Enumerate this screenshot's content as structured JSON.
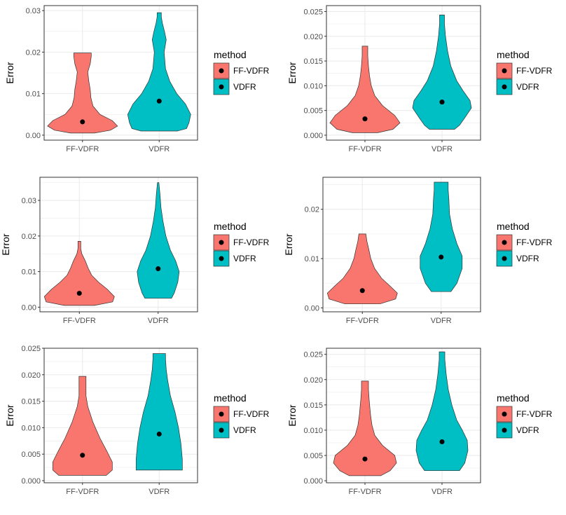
{
  "colors": {
    "FF-VDFR": "#F8766D",
    "VDFR": "#00BFC4",
    "panel_border": "#333333",
    "grid": "#EBEBEB",
    "tick": "#333333",
    "point": "#000000"
  },
  "chart_data": [
    {
      "type": "violin",
      "categories": [
        "FF-VDFR",
        "VDFR"
      ],
      "ylabel": "Error",
      "xlabel": "",
      "ylim": [
        -0.0012,
        0.0312
      ],
      "yticks": [
        0.0,
        0.01,
        0.02,
        0.03
      ],
      "ytick_labels": [
        "0.00",
        "0.01",
        "0.02",
        "0.03"
      ],
      "grid": true,
      "legend": {
        "title": "method",
        "entries": [
          "FF-VDFR",
          "VDFR"
        ],
        "placement": "right"
      },
      "series": [
        {
          "name": "FF-VDFR",
          "mean": 0.0032,
          "density": [
            [
              0.0005,
              0.34
            ],
            [
              0.0012,
              0.8
            ],
            [
              0.0022,
              1.0
            ],
            [
              0.0035,
              0.85
            ],
            [
              0.005,
              0.5
            ],
            [
              0.007,
              0.3
            ],
            [
              0.009,
              0.24
            ],
            [
              0.011,
              0.22
            ],
            [
              0.013,
              0.18
            ],
            [
              0.0152,
              0.15
            ],
            [
              0.0172,
              0.22
            ],
            [
              0.019,
              0.25
            ],
            [
              0.0198,
              0.25
            ]
          ]
        },
        {
          "name": "VDFR",
          "mean": 0.0082,
          "density": [
            [
              0.001,
              0.52
            ],
            [
              0.0016,
              0.78
            ],
            [
              0.003,
              0.85
            ],
            [
              0.005,
              0.9
            ],
            [
              0.0075,
              0.75
            ],
            [
              0.01,
              0.5
            ],
            [
              0.013,
              0.3
            ],
            [
              0.016,
              0.18
            ],
            [
              0.02,
              0.14
            ],
            [
              0.023,
              0.2
            ],
            [
              0.025,
              0.15
            ],
            [
              0.027,
              0.09
            ],
            [
              0.0285,
              0.06
            ],
            [
              0.0295,
              0.06
            ]
          ]
        }
      ]
    },
    {
      "type": "violin",
      "categories": [
        "FF-VDFR",
        "VDFR"
      ],
      "ylabel": "Error",
      "xlabel": "",
      "ylim": [
        -0.001,
        0.0262
      ],
      "yticks": [
        0.0,
        0.005,
        0.01,
        0.015,
        0.02,
        0.025
      ],
      "ytick_labels": [
        "0.000",
        "0.005",
        "0.010",
        "0.015",
        "0.020",
        "0.025"
      ],
      "grid": true,
      "legend": {
        "title": "method",
        "entries": [
          "FF-VDFR",
          "VDFR"
        ],
        "placement": "right"
      },
      "series": [
        {
          "name": "FF-VDFR",
          "mean": 0.0033,
          "density": [
            [
              0.0005,
              0.36
            ],
            [
              0.0012,
              0.8
            ],
            [
              0.0025,
              1.0
            ],
            [
              0.004,
              0.85
            ],
            [
              0.006,
              0.5
            ],
            [
              0.008,
              0.28
            ],
            [
              0.01,
              0.18
            ],
            [
              0.012,
              0.13
            ],
            [
              0.014,
              0.1
            ],
            [
              0.016,
              0.08
            ],
            [
              0.0178,
              0.08
            ],
            [
              0.018,
              0.08
            ]
          ]
        },
        {
          "name": "VDFR",
          "mean": 0.0067,
          "density": [
            [
              0.0012,
              0.36
            ],
            [
              0.002,
              0.5
            ],
            [
              0.0035,
              0.65
            ],
            [
              0.0055,
              0.84
            ],
            [
              0.007,
              0.8
            ],
            [
              0.009,
              0.6
            ],
            [
              0.011,
              0.42
            ],
            [
              0.014,
              0.25
            ],
            [
              0.017,
              0.16
            ],
            [
              0.02,
              0.1
            ],
            [
              0.0225,
              0.07
            ],
            [
              0.0243,
              0.07
            ]
          ]
        }
      ]
    },
    {
      "type": "violin",
      "categories": [
        "FF-VDFR",
        "VDFR"
      ],
      "ylabel": "Error",
      "xlabel": "",
      "ylim": [
        -0.0013,
        0.0365
      ],
      "yticks": [
        0.0,
        0.01,
        0.02,
        0.03
      ],
      "ytick_labels": [
        "0.00",
        "0.01",
        "0.02",
        "0.03"
      ],
      "grid": true,
      "legend": {
        "title": "method",
        "entries": [
          "FF-VDFR",
          "VDFR"
        ],
        "placement": "right"
      },
      "series": [
        {
          "name": "FF-VDFR",
          "mean": 0.0039,
          "density": [
            [
              0.0005,
              0.43
            ],
            [
              0.0015,
              0.95
            ],
            [
              0.003,
              1.0
            ],
            [
              0.005,
              0.8
            ],
            [
              0.007,
              0.55
            ],
            [
              0.009,
              0.35
            ],
            [
              0.011,
              0.25
            ],
            [
              0.013,
              0.17
            ],
            [
              0.015,
              0.07
            ],
            [
              0.0165,
              0.04
            ],
            [
              0.0185,
              0.04
            ]
          ]
        },
        {
          "name": "VDFR",
          "mean": 0.0108,
          "density": [
            [
              0.0025,
              0.38
            ],
            [
              0.004,
              0.46
            ],
            [
              0.007,
              0.56
            ],
            [
              0.01,
              0.6
            ],
            [
              0.013,
              0.5
            ],
            [
              0.016,
              0.35
            ],
            [
              0.02,
              0.22
            ],
            [
              0.024,
              0.14
            ],
            [
              0.028,
              0.08
            ],
            [
              0.032,
              0.05
            ],
            [
              0.035,
              0.02
            ]
          ]
        }
      ]
    },
    {
      "type": "violin",
      "categories": [
        "FF-VDFR",
        "VDFR"
      ],
      "ylabel": "Error",
      "xlabel": "",
      "ylim": [
        -0.0008,
        0.0265
      ],
      "yticks": [
        0.0,
        0.01,
        0.02
      ],
      "ytick_labels": [
        "0.00",
        "0.01",
        "0.02"
      ],
      "grid": true,
      "legend": {
        "title": "method",
        "entries": [
          "FF-VDFR",
          "VDFR"
        ],
        "placement": "right"
      },
      "series": [
        {
          "name": "FF-VDFR",
          "mean": 0.0035,
          "density": [
            [
              0.0008,
              0.5
            ],
            [
              0.0018,
              0.95
            ],
            [
              0.003,
              1.0
            ],
            [
              0.0045,
              0.78
            ],
            [
              0.006,
              0.55
            ],
            [
              0.008,
              0.35
            ],
            [
              0.01,
              0.24
            ],
            [
              0.012,
              0.18
            ],
            [
              0.0135,
              0.13
            ],
            [
              0.015,
              0.1
            ]
          ]
        },
        {
          "name": "VDFR",
          "mean": 0.0103,
          "density": [
            [
              0.0033,
              0.28
            ],
            [
              0.005,
              0.45
            ],
            [
              0.008,
              0.6
            ],
            [
              0.0105,
              0.6
            ],
            [
              0.013,
              0.45
            ],
            [
              0.016,
              0.32
            ],
            [
              0.019,
              0.24
            ],
            [
              0.022,
              0.22
            ],
            [
              0.024,
              0.2
            ],
            [
              0.0255,
              0.2
            ]
          ]
        }
      ]
    },
    {
      "type": "violin",
      "categories": [
        "FF-VDFR",
        "VDFR"
      ],
      "ylabel": "Error",
      "xlabel": "",
      "ylim": [
        -0.0004,
        0.025
      ],
      "yticks": [
        0.0,
        0.005,
        0.01,
        0.015,
        0.02,
        0.025
      ],
      "ytick_labels": [
        "0.000",
        "0.005",
        "0.010",
        "0.015",
        "0.020",
        "0.025"
      ],
      "grid": true,
      "legend": {
        "title": "method",
        "entries": [
          "FF-VDFR",
          "VDFR"
        ],
        "placement": "right"
      },
      "series": [
        {
          "name": "FF-VDFR",
          "mean": 0.0048,
          "density": [
            [
              0.001,
              0.68
            ],
            [
              0.002,
              0.85
            ],
            [
              0.0035,
              0.85
            ],
            [
              0.0055,
              0.7
            ],
            [
              0.008,
              0.5
            ],
            [
              0.011,
              0.3
            ],
            [
              0.014,
              0.15
            ],
            [
              0.016,
              0.1
            ],
            [
              0.018,
              0.1
            ],
            [
              0.0195,
              0.1
            ],
            [
              0.0197,
              0.1
            ]
          ]
        },
        {
          "name": "VDFR",
          "mean": 0.0088,
          "density": [
            [
              0.002,
              0.66
            ],
            [
              0.004,
              0.66
            ],
            [
              0.007,
              0.62
            ],
            [
              0.01,
              0.55
            ],
            [
              0.013,
              0.45
            ],
            [
              0.016,
              0.32
            ],
            [
              0.019,
              0.24
            ],
            [
              0.021,
              0.2
            ],
            [
              0.023,
              0.18
            ],
            [
              0.024,
              0.18
            ]
          ]
        }
      ]
    },
    {
      "type": "violin",
      "categories": [
        "FF-VDFR",
        "VDFR"
      ],
      "ylabel": "Error",
      "xlabel": "",
      "ylim": [
        -0.0004,
        0.0262
      ],
      "yticks": [
        0.0,
        0.005,
        0.01,
        0.015,
        0.02,
        0.025
      ],
      "ytick_labels": [
        "0.000",
        "0.005",
        "0.010",
        "0.015",
        "0.020",
        "0.025"
      ],
      "grid": true,
      "legend": {
        "title": "method",
        "entries": [
          "FF-VDFR",
          "VDFR"
        ],
        "placement": "right"
      },
      "series": [
        {
          "name": "FF-VDFR",
          "mean": 0.0043,
          "density": [
            [
              0.001,
              0.45
            ],
            [
              0.002,
              0.72
            ],
            [
              0.0035,
              0.9
            ],
            [
              0.005,
              0.85
            ],
            [
              0.007,
              0.5
            ],
            [
              0.009,
              0.28
            ],
            [
              0.011,
              0.2
            ],
            [
              0.013,
              0.16
            ],
            [
              0.016,
              0.12
            ],
            [
              0.018,
              0.1
            ],
            [
              0.0197,
              0.1
            ]
          ]
        },
        {
          "name": "VDFR",
          "mean": 0.0077,
          "density": [
            [
              0.002,
              0.5
            ],
            [
              0.0035,
              0.65
            ],
            [
              0.006,
              0.74
            ],
            [
              0.008,
              0.72
            ],
            [
              0.01,
              0.58
            ],
            [
              0.012,
              0.42
            ],
            [
              0.015,
              0.28
            ],
            [
              0.018,
              0.18
            ],
            [
              0.021,
              0.12
            ],
            [
              0.024,
              0.08
            ],
            [
              0.0255,
              0.08
            ]
          ]
        }
      ]
    }
  ]
}
